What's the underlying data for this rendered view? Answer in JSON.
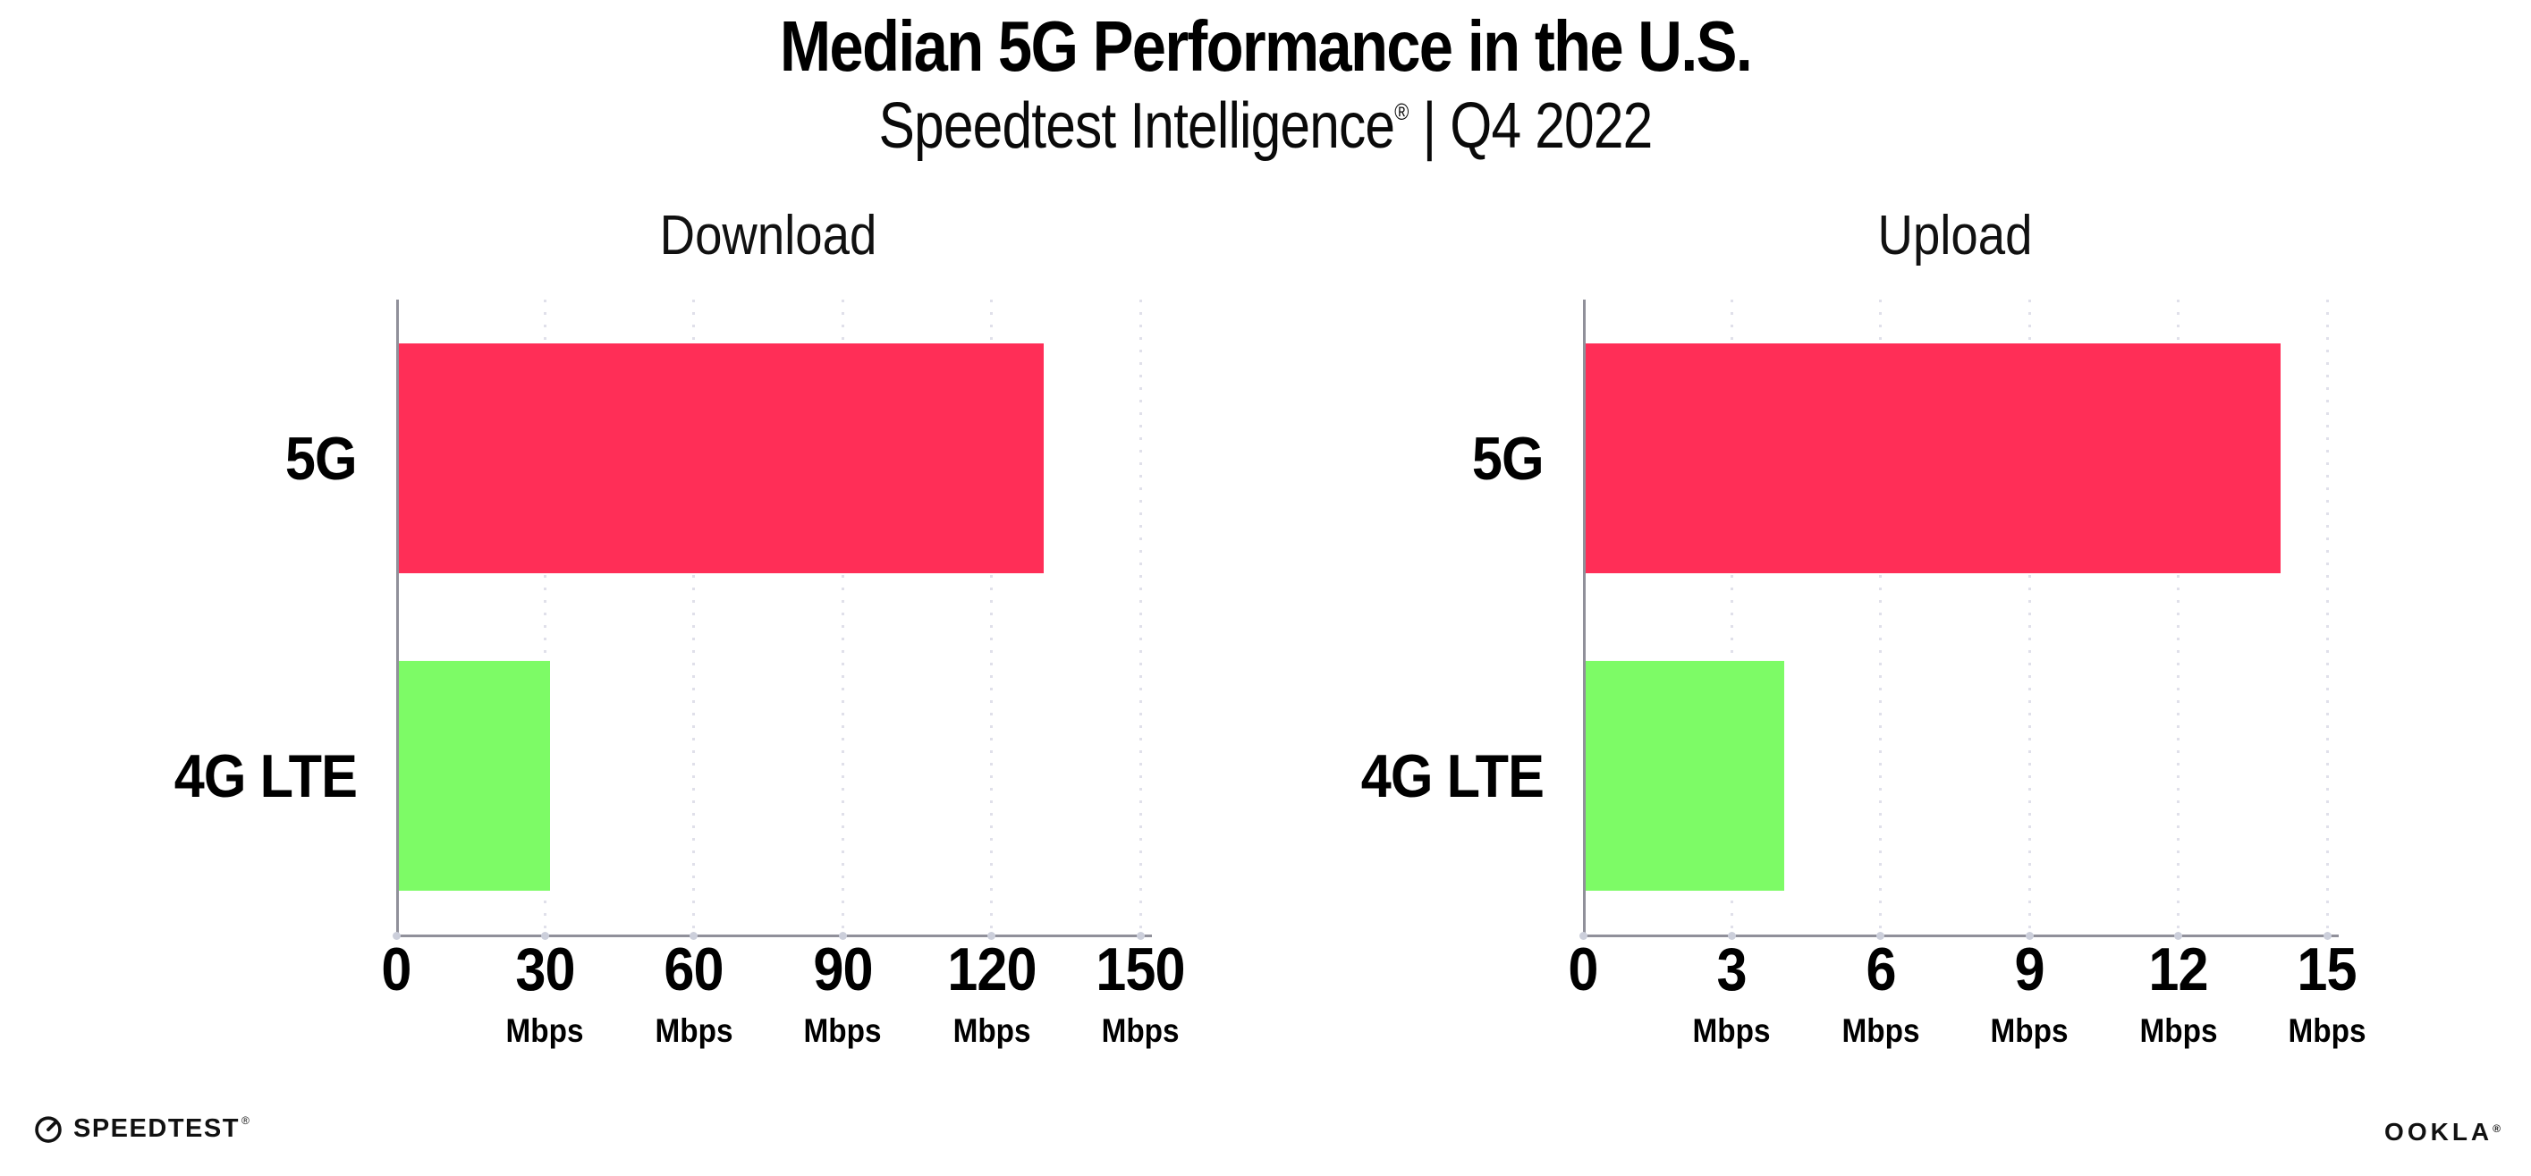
{
  "header": {
    "title": "Median 5G Performance in the U.S.",
    "subtitle_brand": "Speedtest Intelligence",
    "subtitle_reg": "®",
    "subtitle_rest": " | Q4 2022"
  },
  "footer": {
    "speedtest_label": "SPEEDTEST",
    "speedtest_reg": "®",
    "ookla_label": "OOKLA",
    "ookla_reg": "®"
  },
  "colors": {
    "bar_5g": "#ff2e57",
    "bar_4g_lte": "#7dfb66",
    "axis": "#90909a",
    "gridline": "#e0e0ea",
    "text": "#000000"
  },
  "chart_data": [
    {
      "type": "bar",
      "orientation": "horizontal",
      "title": "Download",
      "categories": [
        "5G",
        "4G LTE"
      ],
      "values": [
        130,
        30.5
      ],
      "unit": "Mbps",
      "xlim": [
        0,
        150
      ],
      "xticks": [
        0,
        30,
        60,
        90,
        120,
        150
      ],
      "bar_colors": [
        "#ff2e57",
        "#7dfb66"
      ],
      "grid": "dotted vertical gridlines",
      "legend": "none"
    },
    {
      "type": "bar",
      "orientation": "horizontal",
      "title": "Upload",
      "categories": [
        "5G",
        "4G LTE"
      ],
      "values": [
        14,
        4
      ],
      "unit": "Mbps",
      "xlim": [
        0,
        15
      ],
      "xticks": [
        0,
        3,
        6,
        9,
        12,
        15
      ],
      "bar_colors": [
        "#ff2e57",
        "#7dfb66"
      ],
      "grid": "dotted vertical gridlines",
      "legend": "none"
    }
  ]
}
